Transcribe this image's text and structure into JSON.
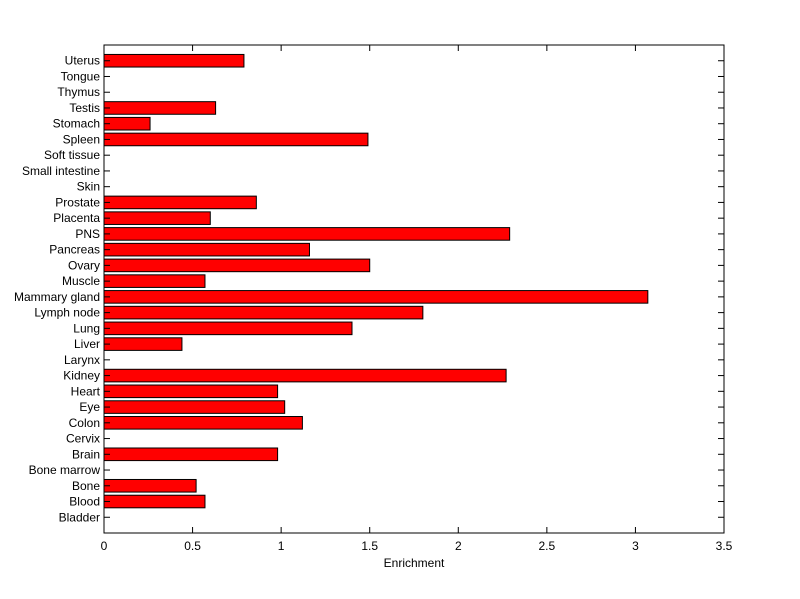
{
  "chart_data": {
    "type": "bar",
    "orientation": "horizontal",
    "categories": [
      "Uterus",
      "Tongue",
      "Thymus",
      "Testis",
      "Stomach",
      "Spleen",
      "Soft tissue",
      "Small intestine",
      "Skin",
      "Prostate",
      "Placenta",
      "PNS",
      "Pancreas",
      "Ovary",
      "Muscle",
      "Mammary gland",
      "Lymph node",
      "Lung",
      "Liver",
      "Larynx",
      "Kidney",
      "Heart",
      "Eye",
      "Colon",
      "Cervix",
      "Brain",
      "Bone marrow",
      "Bone",
      "Blood",
      "Bladder"
    ],
    "values": [
      0.79,
      0,
      0,
      0.63,
      0.26,
      1.49,
      0,
      0,
      0,
      0.86,
      0.6,
      2.29,
      1.16,
      1.5,
      0.57,
      3.07,
      1.8,
      1.4,
      0.44,
      0,
      2.27,
      0.98,
      1.02,
      1.12,
      0,
      0.98,
      0,
      0.52,
      0.57,
      0
    ],
    "xlabel": "Enrichment",
    "ylabel": "",
    "title": "",
    "xlim": [
      0,
      3.5
    ],
    "xticks": [
      "0",
      "0.5",
      "1",
      "1.5",
      "2",
      "2.5",
      "3",
      "3.5"
    ],
    "bar_color": "#ff0000",
    "grid": false
  }
}
